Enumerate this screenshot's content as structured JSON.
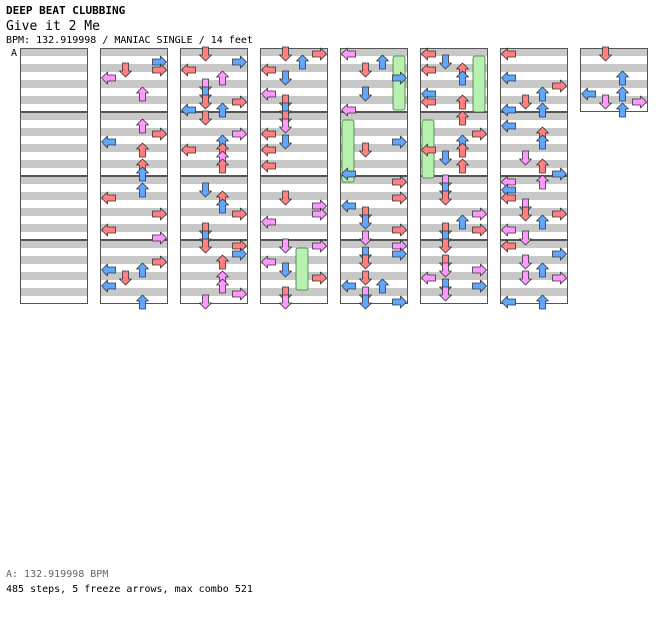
{
  "header": {
    "title": "DEEP BEAT CLUBBING",
    "song": "Give it 2 Me",
    "bpm_label": "BPM: ",
    "bpm": "132.919998",
    "mode": "MANIAC SINGLE",
    "feet": "14 feet",
    "separator": " / "
  },
  "chart": {
    "bpm_marker": "A",
    "columns": 8,
    "measures_per_column": 4,
    "total_measures": 29,
    "lanes": [
      "left",
      "down",
      "up",
      "right"
    ],
    "colors": {
      "quarter": "#ff8080",
      "eighth": "#60a8ff",
      "sixteenth": "#ff99ff",
      "freeze": "#b8f0b0",
      "stripe": "#c8c8c8",
      "border": "#555555"
    },
    "rows_per_measure": 16
  },
  "footer": {
    "bpm_line": "A: 132.919998 BPM",
    "steps": "485",
    "steps_label": " steps, ",
    "freeze": "5",
    "freeze_label": " freeze arrows, max combo ",
    "combo": "521"
  }
}
